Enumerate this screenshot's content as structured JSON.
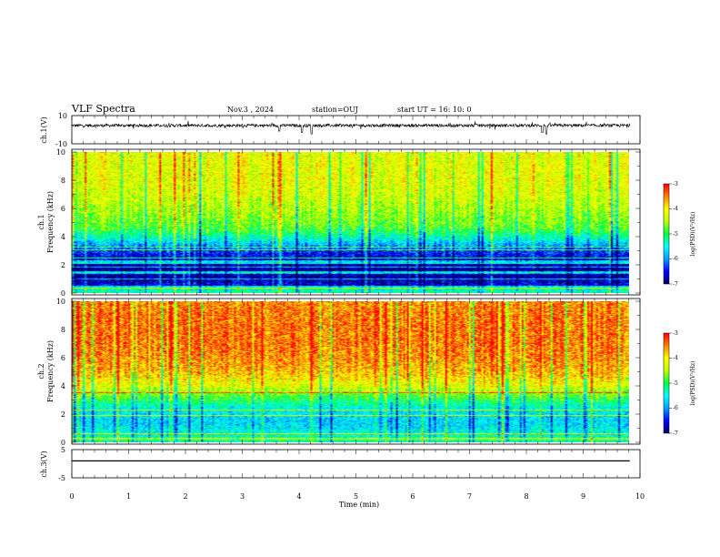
{
  "header": {
    "title": "VLF Spectra",
    "date": "Nov.3  , 2024",
    "station": "station=OUJ",
    "start": "start UT =  16: 10: 0"
  },
  "chart_data": [
    {
      "type": "line",
      "panel": "ch1-waveform",
      "ylabel": "ch.1(V)",
      "ylim": [
        -10,
        10
      ],
      "ytick_labels": [
        "10",
        "-10"
      ],
      "x_unit": "min",
      "xlim": [
        0,
        10
      ],
      "baseline": 3,
      "note_values": "noisy waveform centered near +3 V with sporadic negative spikes",
      "spikes": [
        {
          "x": 3.65,
          "y": -1
        },
        {
          "x": 4.05,
          "y": -2
        },
        {
          "x": 4.22,
          "y": -3
        },
        {
          "x": 8.28,
          "y": -2
        },
        {
          "x": 8.35,
          "y": -3
        }
      ]
    },
    {
      "type": "heatmap",
      "panel": "ch1-spectrogram",
      "ylabel": "ch.1\nFrequency (kHz)",
      "ylabel_line1": "ch.1",
      "ylabel_line2": "Frequency (kHz)",
      "xlim": [
        0,
        10
      ],
      "ylim": [
        0,
        10
      ],
      "ytick_labels": [
        "0",
        "2",
        "4",
        "6",
        "8",
        "10"
      ],
      "band_levels_by_khz": [
        {
          "f": 0.0,
          "level": -6.2
        },
        {
          "f": 0.5,
          "level": -6.6
        },
        {
          "f": 1.0,
          "level": -6.8
        },
        {
          "f": 1.5,
          "level": -6.9
        },
        {
          "f": 2.0,
          "level": -6.8
        },
        {
          "f": 2.5,
          "level": -6.6
        },
        {
          "f": 3.0,
          "level": -6.3
        },
        {
          "f": 3.5,
          "level": -5.8
        },
        {
          "f": 4.0,
          "level": -5.3
        },
        {
          "f": 4.5,
          "level": -4.9
        },
        {
          "f": 5.0,
          "level": -4.7
        },
        {
          "f": 6.0,
          "level": -4.5
        },
        {
          "f": 7.0,
          "level": -4.3
        },
        {
          "f": 8.0,
          "level": -4.2
        },
        {
          "f": 9.0,
          "level": -4.2
        },
        {
          "f": 10.0,
          "level": -4.2
        }
      ]
    },
    {
      "type": "heatmap",
      "panel": "ch2-spectrogram",
      "ylabel": "ch.2\nFrequency (kHz)",
      "ylabel_line1": "ch.2",
      "ylabel_line2": "Frequency (kHz)",
      "xlim": [
        0,
        10
      ],
      "ylim": [
        0,
        10
      ],
      "ytick_labels": [
        "0",
        "2",
        "4",
        "6",
        "8",
        "10"
      ],
      "band_levels_by_khz": [
        {
          "f": 0.0,
          "level": -5.2
        },
        {
          "f": 0.5,
          "level": -5.4
        },
        {
          "f": 1.0,
          "level": -5.6
        },
        {
          "f": 1.5,
          "level": -5.7
        },
        {
          "f": 2.0,
          "level": -5.6
        },
        {
          "f": 2.5,
          "level": -5.4
        },
        {
          "f": 3.0,
          "level": -5.0
        },
        {
          "f": 3.5,
          "level": -4.6
        },
        {
          "f": 4.0,
          "level": -4.2
        },
        {
          "f": 4.5,
          "level": -3.9
        },
        {
          "f": 5.0,
          "level": -3.7
        },
        {
          "f": 6.0,
          "level": -3.5
        },
        {
          "f": 7.0,
          "level": -3.4
        },
        {
          "f": 8.0,
          "level": -3.4
        },
        {
          "f": 9.0,
          "level": -3.4
        },
        {
          "f": 10.0,
          "level": -3.5
        }
      ]
    },
    {
      "type": "line",
      "panel": "ch3-waveform",
      "ylabel": "ch.3(V)",
      "ylim": [
        -5,
        5
      ],
      "ytick_labels": [
        "5",
        "-5"
      ],
      "xlim": [
        0,
        10
      ],
      "x": [
        0,
        9.82
      ],
      "y": [
        1,
        1
      ],
      "xlabel": "Time (min)",
      "xtick_labels": [
        "0",
        "1",
        "2",
        "3",
        "4",
        "5",
        "6",
        "7",
        "8",
        "9",
        "10"
      ]
    }
  ],
  "colorbars": [
    {
      "panel": "ch1",
      "range": [
        -7,
        -3
      ],
      "tick_labels": [
        "-3",
        "-4",
        "-5",
        "-6",
        "-7"
      ],
      "label": "log(PSD)(V²/Hz)"
    },
    {
      "panel": "ch2",
      "range": [
        -7,
        -3
      ],
      "tick_labels": [
        "-3",
        "-4",
        "-5",
        "-6",
        "-7"
      ],
      "label": "log(PSD)(V²/Hz)"
    }
  ],
  "colors": {
    "colormap": [
      "#000060",
      "#0000ff",
      "#00a0ff",
      "#00ffff",
      "#00ff40",
      "#c0ff00",
      "#ffff00",
      "#ff8000",
      "#ff0000",
      "#ffffff"
    ]
  }
}
